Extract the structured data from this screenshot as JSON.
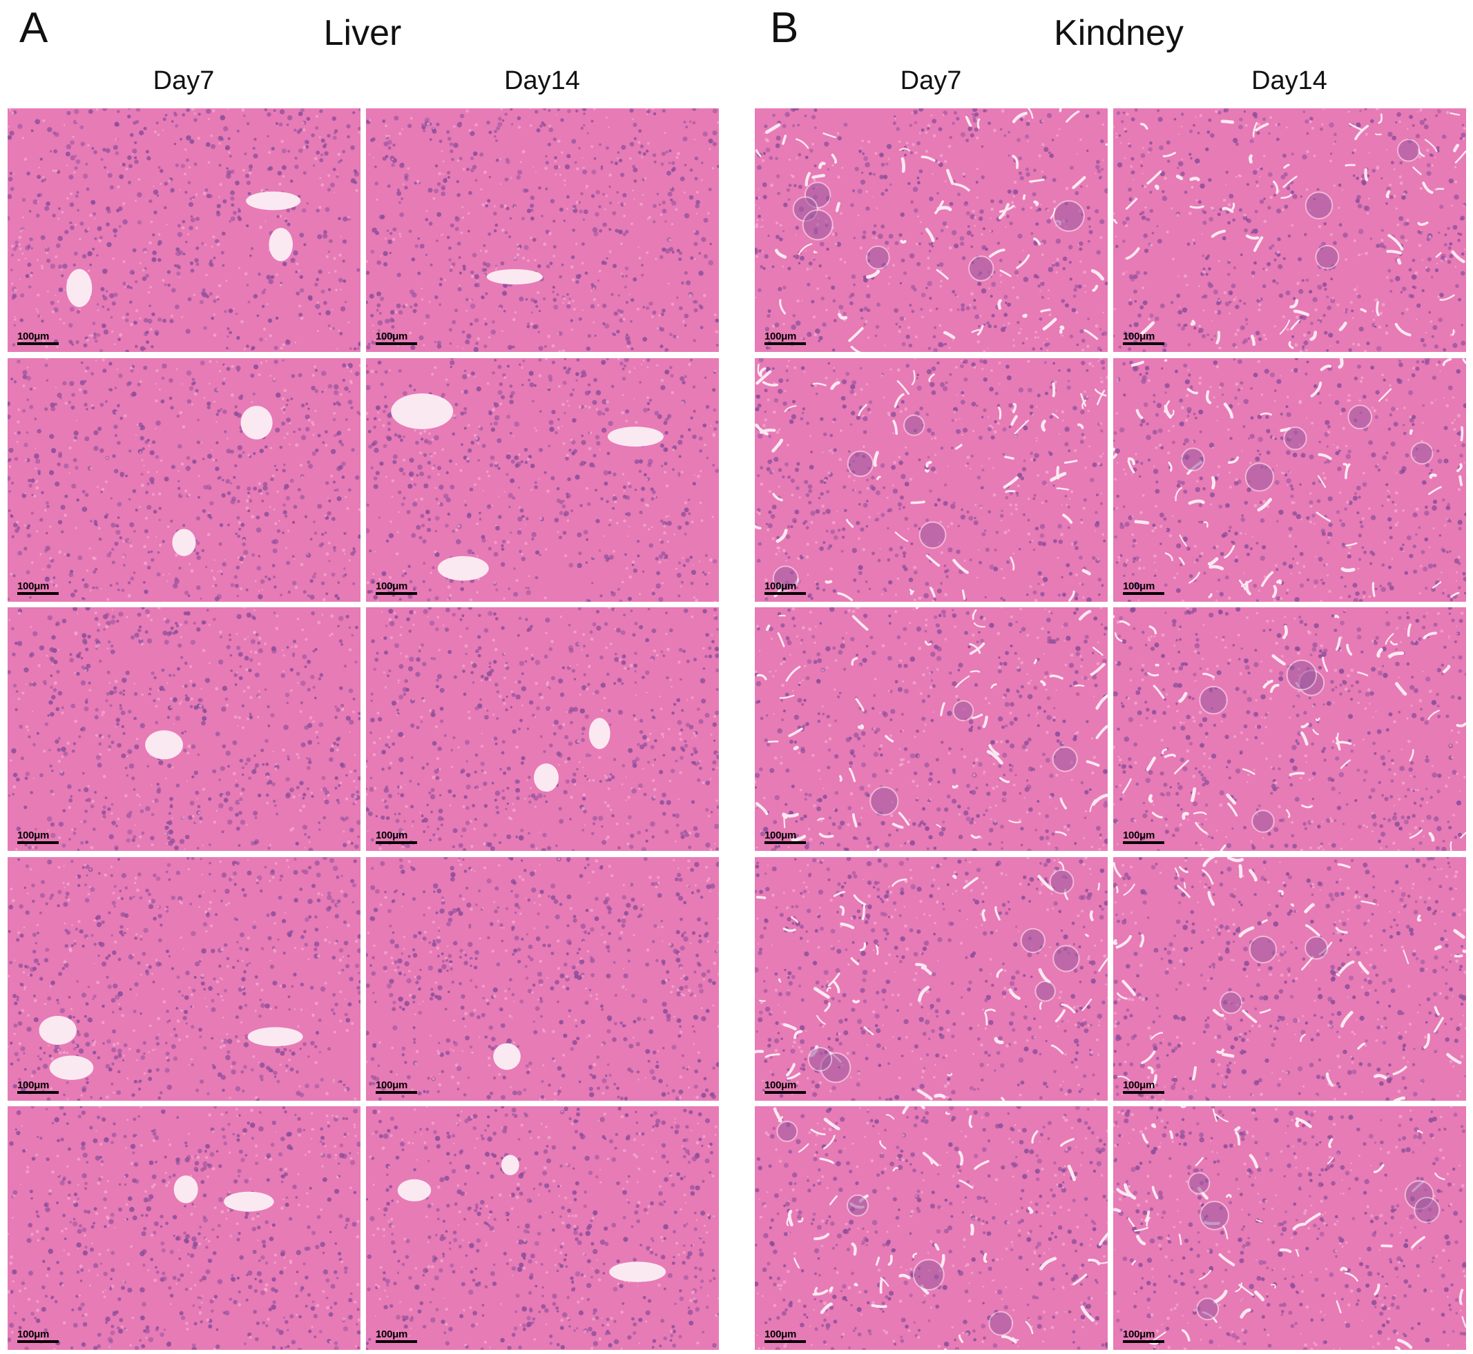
{
  "panels": [
    {
      "letter": "A",
      "title": "Liver",
      "columns": [
        "Day7",
        "Day14"
      ],
      "tissue": "liver"
    },
    {
      "letter": "B",
      "title": "Kindney",
      "columns": [
        "Day7",
        "Day14"
      ],
      "tissue": "kidney"
    }
  ],
  "rows_per_column": 5,
  "scale_bar_label": "100μm",
  "colors": {
    "tissue_background": "#e77bb6",
    "nuclei": "#8a4e9a",
    "lumen": "#fbe9f1",
    "glomerulus": "#9d5aa0"
  }
}
